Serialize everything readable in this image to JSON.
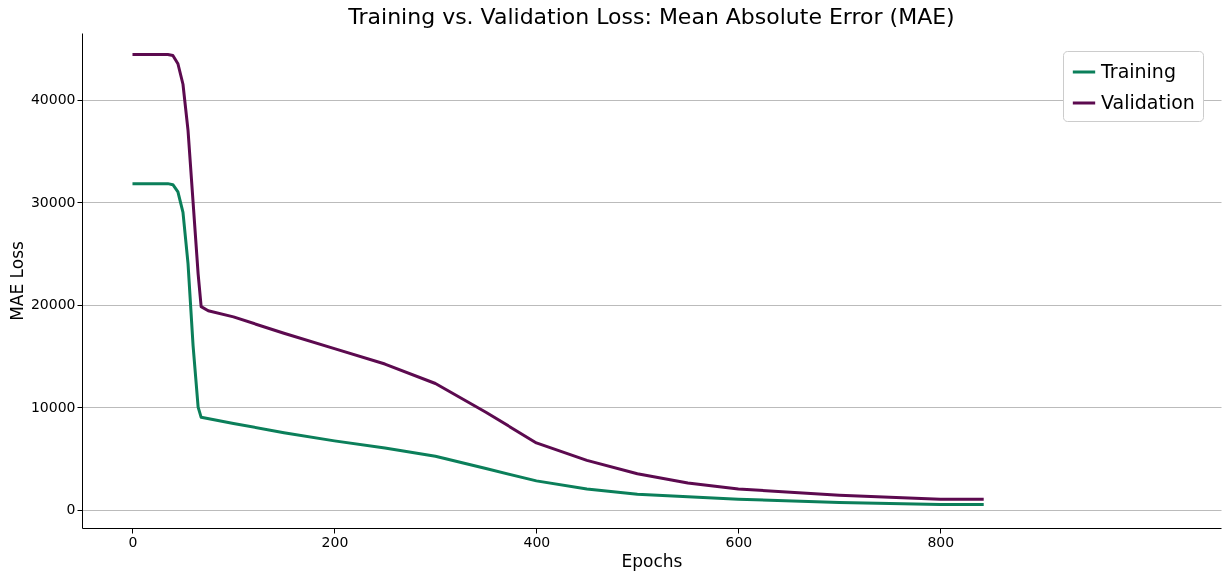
{
  "chart_data": {
    "type": "line",
    "title": "Training vs. Validation Loss: Mean Absolute Error (MAE)",
    "xlabel": "Epochs",
    "ylabel": "MAE Loss",
    "series": [
      {
        "name": "Training",
        "color": "#0b7f5a",
        "x": [
          0,
          35,
          40,
          45,
          50,
          55,
          60,
          65,
          68,
          100,
          150,
          200,
          250,
          300,
          350,
          400,
          450,
          500,
          600,
          700,
          800,
          843
        ],
        "values": [
          31800,
          31800,
          31700,
          31000,
          29000,
          24000,
          16000,
          10000,
          9000,
          8400,
          7500,
          6700,
          6000,
          5200,
          4000,
          2800,
          2000,
          1500,
          1000,
          700,
          500,
          500
        ]
      },
      {
        "name": "Validation",
        "color": "#5c0a4f",
        "x": [
          0,
          35,
          40,
          45,
          50,
          55,
          60,
          65,
          68,
          75,
          100,
          150,
          200,
          250,
          300,
          350,
          400,
          450,
          500,
          550,
          600,
          700,
          800,
          843
        ],
        "values": [
          44400,
          44400,
          44300,
          43500,
          41500,
          37000,
          30000,
          23000,
          19800,
          19400,
          18800,
          17200,
          15700,
          14200,
          12300,
          9500,
          6500,
          4800,
          3500,
          2600,
          2000,
          1400,
          1000,
          1000
        ]
      }
    ],
    "xlim": [
      -50,
      1078
    ],
    "ylim": [
      -1800,
      46500
    ],
    "xticks": [
      0,
      200,
      400,
      600,
      800
    ],
    "yticks": [
      0,
      10000,
      20000,
      30000,
      40000
    ],
    "grid": "y",
    "legend": "top right",
    "marker": "none",
    "line_style": "solid"
  }
}
